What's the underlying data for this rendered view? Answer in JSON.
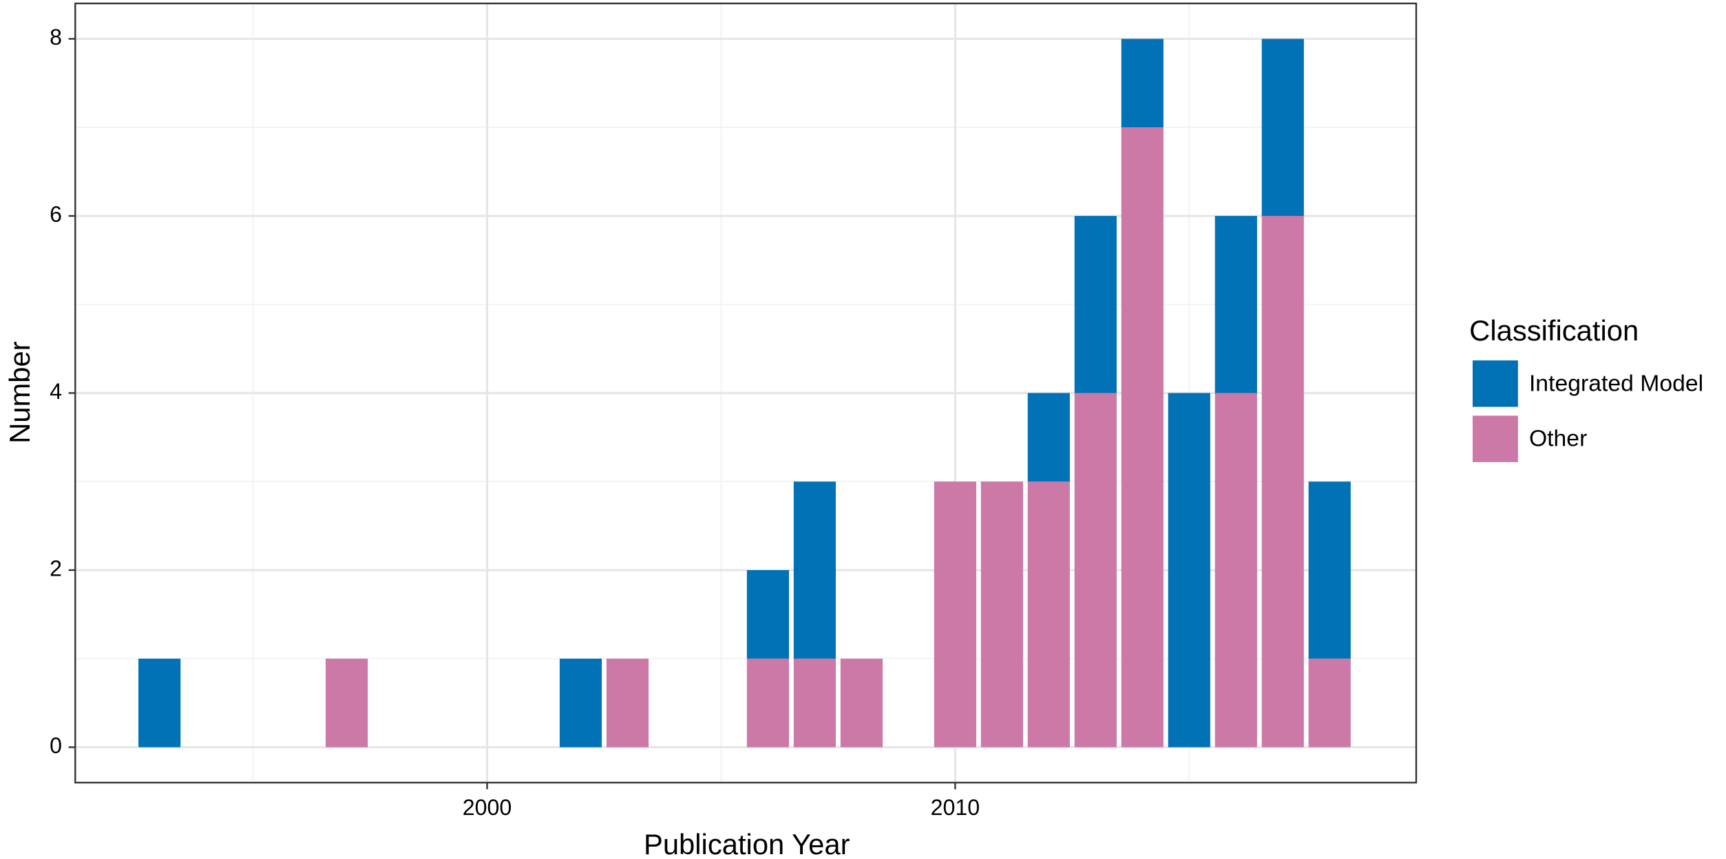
{
  "chart_data": {
    "type": "bar",
    "stacked": true,
    "x_label": "Publication Year",
    "y_label": "Number",
    "x": [
      1993,
      1997,
      2002,
      2003,
      2006,
      2007,
      2008,
      2010,
      2011,
      2012,
      2013,
      2014,
      2015,
      2016,
      2017,
      2018
    ],
    "series": [
      {
        "name": "Integrated Model",
        "color": "#0072b5",
        "values": [
          1,
          0,
          1,
          0,
          1,
          2,
          0,
          0,
          0,
          1,
          2,
          1,
          4,
          2,
          2,
          2
        ]
      },
      {
        "name": "Other",
        "color": "#cc79a7",
        "values": [
          0,
          1,
          0,
          1,
          1,
          1,
          1,
          3,
          3,
          3,
          4,
          7,
          0,
          4,
          6,
          1
        ]
      }
    ],
    "legend_title": "Classification",
    "legend": "right",
    "xlim": [
      1991.2,
      2019.85
    ],
    "xticks": [
      2000,
      2010
    ],
    "xminorticks": [
      1995,
      2005,
      2015
    ],
    "ylim": [
      -0.4,
      8.4
    ],
    "yticks": [
      0,
      2,
      4,
      6,
      8
    ],
    "yminorticks": [
      1,
      3,
      5,
      7
    ],
    "grid": true
  }
}
